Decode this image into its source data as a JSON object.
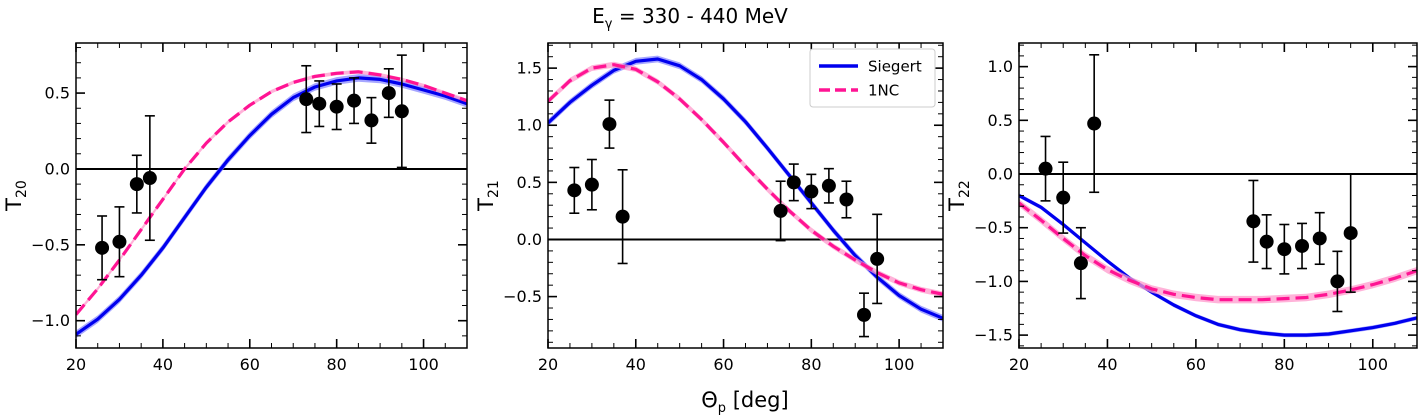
{
  "figure": {
    "title_main": "E",
    "title_sub": "γ",
    "title_rest": " = 330 - 440 MeV",
    "xlabel_main": "Θ",
    "xlabel_sub": "p",
    "xlabel_rest": " [deg]"
  },
  "colors": {
    "siegert": "#0000ee",
    "siegert_band": "#8888ff",
    "onenc": "#ff1493",
    "onenc_band": "#ff99cc",
    "data": "#000000"
  },
  "chart_data": [
    {
      "type": "line",
      "id": "T20",
      "ylabel_main": "T",
      "ylabel_sub": "20",
      "xlim": [
        20,
        110
      ],
      "ylim": [
        -1.18,
        0.83
      ],
      "xticks": [
        20,
        40,
        60,
        80,
        100
      ],
      "yticks": [
        -1.0,
        -0.5,
        0.0,
        0.5
      ],
      "ytick_labels": [
        "−1.0",
        "−0.5",
        "0.0",
        "0.5"
      ],
      "zero_line": true,
      "series": [
        {
          "key": "siegert",
          "x": [
            20,
            25,
            30,
            35,
            40,
            45,
            50,
            55,
            60,
            65,
            70,
            75,
            80,
            85,
            90,
            95,
            100,
            105,
            110
          ],
          "y": [
            -1.09,
            -0.99,
            -0.86,
            -0.7,
            -0.52,
            -0.32,
            -0.12,
            0.06,
            0.22,
            0.36,
            0.47,
            0.54,
            0.58,
            0.6,
            0.59,
            0.56,
            0.52,
            0.48,
            0.43
          ],
          "band": 0.025
        },
        {
          "key": "onenc",
          "x": [
            20,
            25,
            30,
            35,
            40,
            45,
            50,
            55,
            60,
            65,
            70,
            75,
            80,
            85,
            90,
            95,
            100,
            105,
            110
          ],
          "y": [
            -0.96,
            -0.79,
            -0.6,
            -0.4,
            -0.2,
            0.0,
            0.17,
            0.31,
            0.42,
            0.51,
            0.57,
            0.61,
            0.63,
            0.64,
            0.62,
            0.59,
            0.55,
            0.5,
            0.45
          ],
          "band": 0.012
        }
      ],
      "points": {
        "x": [
          26,
          30,
          34,
          37,
          73,
          76,
          80,
          84,
          88,
          92,
          95
        ],
        "y": [
          -0.52,
          -0.48,
          -0.1,
          -0.06,
          0.46,
          0.43,
          0.41,
          0.45,
          0.32,
          0.5,
          0.38
        ],
        "err": [
          0.21,
          0.23,
          0.19,
          0.41,
          0.22,
          0.15,
          0.15,
          0.15,
          0.15,
          0.16,
          0.37
        ]
      }
    },
    {
      "type": "line",
      "id": "T21",
      "ylabel_main": "T",
      "ylabel_sub": "21",
      "xlim": [
        20,
        110
      ],
      "ylim": [
        -0.95,
        1.72
      ],
      "xticks": [
        20,
        40,
        60,
        80,
        100
      ],
      "yticks": [
        -0.5,
        0.0,
        0.5,
        1.0,
        1.5
      ],
      "ytick_labels": [
        "−0.5",
        "0.0",
        "0.5",
        "1.0",
        "1.5"
      ],
      "zero_line": true,
      "legend": {
        "position": "top-right",
        "items": [
          {
            "key": "siegert",
            "label": "Siegert",
            "style": "solid"
          },
          {
            "key": "onenc",
            "label": "1NC",
            "style": "dashed"
          }
        ]
      },
      "series": [
        {
          "key": "siegert",
          "x": [
            20,
            25,
            30,
            35,
            40,
            45,
            50,
            55,
            60,
            65,
            70,
            75,
            80,
            85,
            90,
            95,
            100,
            105,
            110
          ],
          "y": [
            1.02,
            1.2,
            1.35,
            1.48,
            1.56,
            1.58,
            1.52,
            1.4,
            1.23,
            1.03,
            0.8,
            0.56,
            0.32,
            0.08,
            -0.14,
            -0.33,
            -0.49,
            -0.61,
            -0.69
          ],
          "band": 0.03
        },
        {
          "key": "onenc",
          "x": [
            20,
            25,
            30,
            35,
            40,
            45,
            50,
            55,
            60,
            65,
            70,
            75,
            80,
            85,
            90,
            95,
            100,
            105,
            110
          ],
          "y": [
            1.21,
            1.39,
            1.5,
            1.53,
            1.49,
            1.38,
            1.23,
            1.05,
            0.85,
            0.64,
            0.44,
            0.25,
            0.08,
            -0.06,
            -0.18,
            -0.29,
            -0.38,
            -0.44,
            -0.48
          ],
          "band": 0.025
        }
      ],
      "points": {
        "x": [
          26,
          30,
          34,
          37,
          73,
          76,
          80,
          84,
          88,
          95,
          92
        ],
        "y": [
          0.43,
          0.48,
          1.01,
          0.2,
          0.25,
          0.5,
          0.42,
          0.47,
          0.35,
          -0.17,
          -0.66
        ],
        "err": [
          0.2,
          0.22,
          0.21,
          0.41,
          0.26,
          0.16,
          0.15,
          0.15,
          0.16,
          0.39,
          0.19
        ]
      }
    },
    {
      "type": "line",
      "id": "T22",
      "ylabel_main": "T",
      "ylabel_sub": "22",
      "xlim": [
        20,
        110
      ],
      "ylim": [
        -1.62,
        1.22
      ],
      "xticks": [
        20,
        40,
        60,
        80,
        100
      ],
      "yticks": [
        -1.5,
        -1.0,
        -0.5,
        0.0,
        0.5,
        1.0
      ],
      "ytick_labels": [
        "−1.5",
        "−1.0",
        "−0.5",
        "0.0",
        "0.5",
        "1.0"
      ],
      "zero_line": true,
      "series": [
        {
          "key": "siegert",
          "x": [
            20,
            25,
            30,
            35,
            40,
            45,
            50,
            55,
            60,
            65,
            70,
            75,
            80,
            85,
            90,
            95,
            100,
            105,
            110
          ],
          "y": [
            -0.2,
            -0.31,
            -0.47,
            -0.64,
            -0.81,
            -0.97,
            -1.1,
            -1.22,
            -1.32,
            -1.4,
            -1.45,
            -1.48,
            -1.5,
            -1.5,
            -1.49,
            -1.46,
            -1.43,
            -1.39,
            -1.34
          ],
          "band": 0.02
        },
        {
          "key": "onenc",
          "x": [
            20,
            25,
            30,
            35,
            40,
            45,
            50,
            55,
            60,
            65,
            70,
            75,
            80,
            85,
            90,
            95,
            100,
            105,
            110
          ],
          "y": [
            -0.27,
            -0.43,
            -0.6,
            -0.76,
            -0.89,
            -0.99,
            -1.07,
            -1.12,
            -1.15,
            -1.17,
            -1.17,
            -1.17,
            -1.16,
            -1.15,
            -1.12,
            -1.08,
            -1.03,
            -0.97,
            -0.9
          ],
          "band": 0.035
        }
      ],
      "points": {
        "x": [
          26,
          30,
          34,
          37,
          73,
          76,
          80,
          84,
          88,
          92,
          95
        ],
        "y": [
          0.05,
          -0.22,
          -0.83,
          0.47,
          -0.44,
          -0.63,
          -0.7,
          -0.67,
          -0.6,
          -1.0,
          -0.55
        ],
        "err": [
          0.3,
          0.33,
          0.33,
          0.64,
          0.38,
          0.25,
          0.23,
          0.21,
          0.24,
          0.28,
          0.55
        ]
      }
    }
  ]
}
